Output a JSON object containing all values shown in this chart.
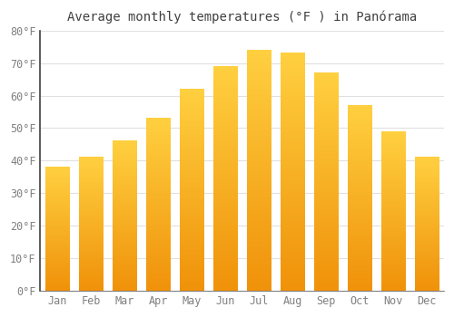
{
  "title": "Average monthly temperatures (°F ) in Panórama",
  "months": [
    "Jan",
    "Feb",
    "Mar",
    "Apr",
    "May",
    "Jun",
    "Jul",
    "Aug",
    "Sep",
    "Oct",
    "Nov",
    "Dec"
  ],
  "values": [
    38,
    41,
    46,
    53,
    62,
    69,
    74,
    73,
    67,
    57,
    49,
    41
  ],
  "bar_color_bottom": "#F0920A",
  "bar_color_top": "#FFD040",
  "background_color": "#FFFFFF",
  "plot_bg_color": "#FFFFFF",
  "ylim": [
    0,
    80
  ],
  "yticks": [
    0,
    10,
    20,
    30,
    40,
    50,
    60,
    70,
    80
  ],
  "grid_color": "#E0E0E0",
  "title_fontsize": 10,
  "tick_fontsize": 8.5,
  "tick_color": "#808080",
  "spine_color": "#404040"
}
